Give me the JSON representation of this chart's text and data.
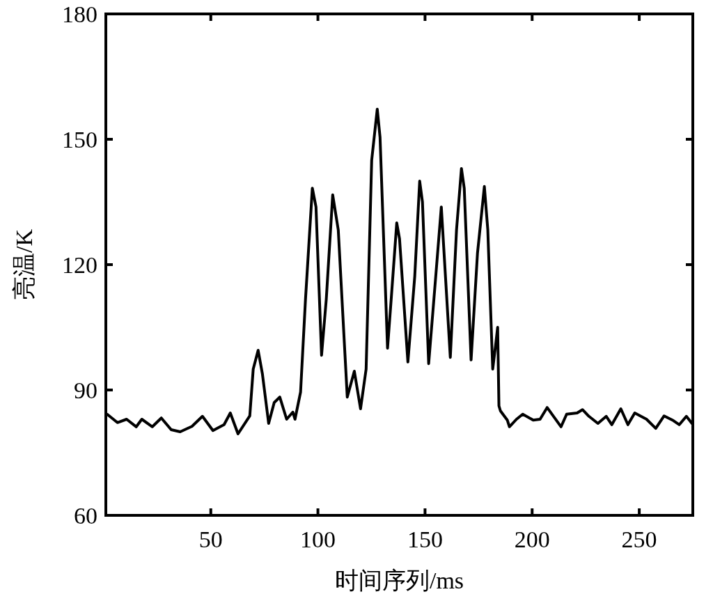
{
  "chart_data": {
    "type": "line",
    "xlabel": "时间序列/ms",
    "ylabel": "亮温/K",
    "xlim": [
      1,
      275
    ],
    "ylim": [
      60,
      180
    ],
    "xticks": [
      50,
      100,
      150,
      200,
      250
    ],
    "yticks": [
      60,
      90,
      120,
      150,
      180
    ],
    "grid": false,
    "marker": "none",
    "line_style": "solid",
    "series": [
      {
        "color": "#000000",
        "x": [
          1.6,
          6.4,
          10.7,
          15.2,
          17.8,
          22.7,
          26.9,
          31.5,
          35.7,
          41.2,
          46.1,
          51,
          56.2,
          59.1,
          62.7,
          68.2,
          69.8,
          72.1,
          74.1,
          77,
          79.6,
          82.2,
          85.4,
          88.3,
          89.3,
          91.9,
          94.2,
          97.4,
          99.1,
          101.7,
          103.9,
          106.9,
          109.5,
          113.7,
          117,
          119.9,
          122.5,
          125.1,
          127.7,
          129,
          132.5,
          134.2,
          136.8,
          138.1,
          142,
          145.2,
          147.5,
          148.8,
          151.7,
          155,
          157.6,
          161.8,
          164.7,
          167,
          168.3,
          171.5,
          174.5,
          177.7,
          179.3,
          181.6,
          182.9,
          183.9,
          184.5,
          185.2,
          188.4,
          189.4,
          192.7,
          195.6,
          200.5,
          203.7,
          207,
          213.5,
          216.1,
          221,
          223.5,
          226.5,
          230.7,
          234.6,
          237.2,
          241.4,
          244.7,
          247.9,
          253.4,
          257.7,
          261.6,
          265.5,
          268.7,
          272,
          274.6
        ],
        "values": [
          84.2,
          82.2,
          83,
          81.2,
          83,
          81.2,
          83.3,
          80.5,
          80,
          81.3,
          83.7,
          80.3,
          81.7,
          84.5,
          79.5,
          83.8,
          95,
          99.5,
          93.8,
          82,
          87,
          88.3,
          83,
          84.7,
          83,
          89.5,
          111.7,
          138.3,
          133.8,
          98.3,
          111.7,
          136.7,
          128.3,
          88.3,
          94.5,
          85.5,
          95,
          145,
          157.2,
          150.5,
          100,
          111.7,
          130,
          126.2,
          96.7,
          117.2,
          140,
          135,
          96.3,
          117.2,
          133.8,
          97.8,
          128.3,
          143,
          138.3,
          97.2,
          122.8,
          138.7,
          128.3,
          95,
          100.5,
          105,
          86.2,
          85,
          82.8,
          81.2,
          83,
          84.2,
          82.8,
          83,
          85.8,
          81.2,
          84.2,
          84.5,
          85.3,
          83.7,
          82,
          83.7,
          81.7,
          85.5,
          81.7,
          84.5,
          83,
          80.8,
          83.8,
          82.8,
          81.7,
          83.7,
          82
        ]
      }
    ]
  }
}
